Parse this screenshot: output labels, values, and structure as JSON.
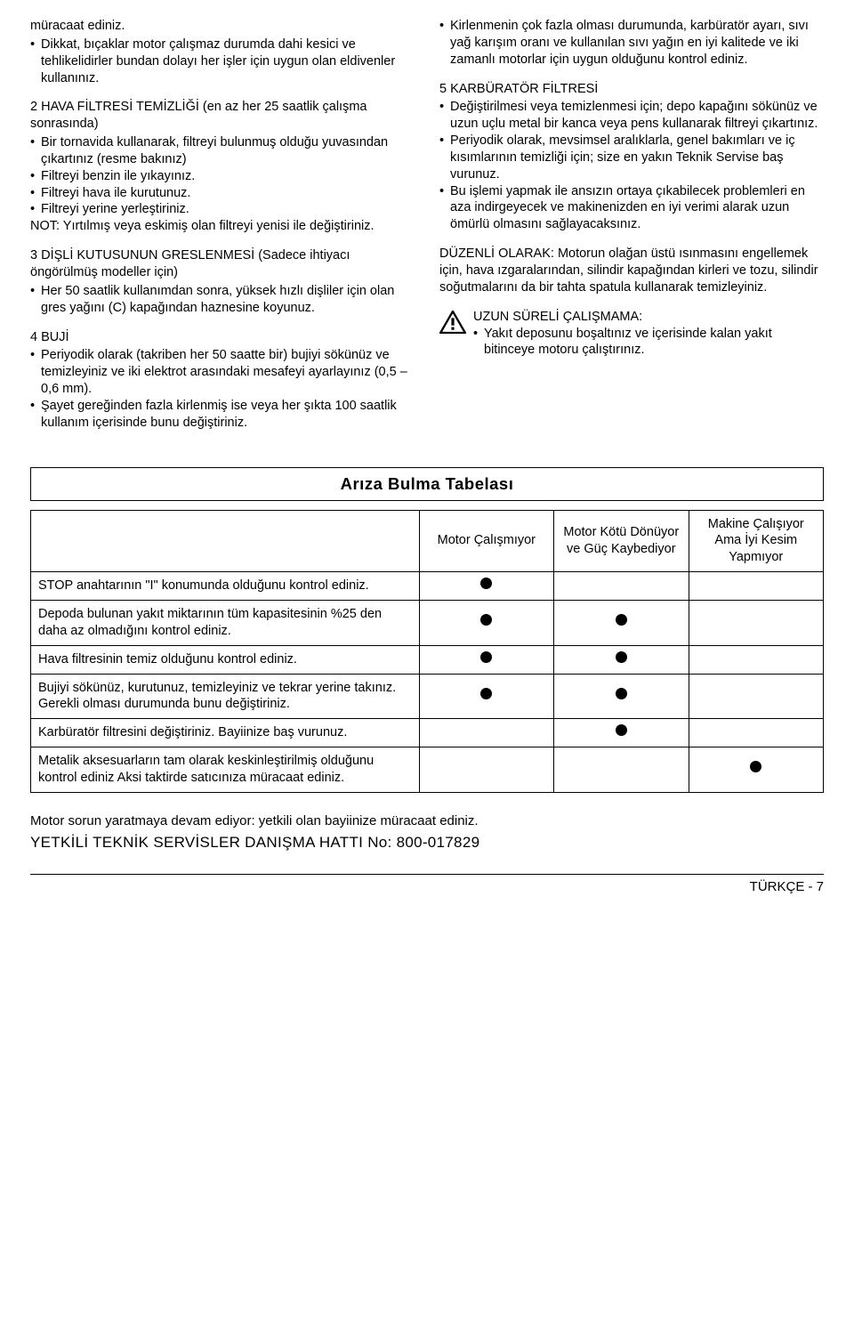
{
  "leftcol": {
    "p0": "müracaat ediniz.",
    "b0": "Dikkat, bıçaklar motor çalışmaz durumda dahi kesici ve tehlikelidirler bundan dolayı her işler için uygun olan eldivenler kullanınız.",
    "h1": "2 HAVA FİLTRESİ TEMİZLİĞİ (en az her 25 saatlik çalışma sonrasında)",
    "b1a": "Bir tornavida kullanarak, filtreyi bulunmuş olduğu yuvasından çıkartınız (resme bakınız)",
    "b1b": "Filtreyi benzin ile yıkayınız.",
    "b1c": "Filtreyi hava ile kurutunuz.",
    "b1d": "Filtreyi yerine yerleştiriniz.",
    "note1": "NOT: Yırtılmış veya eskimiş olan filtreyi yenisi ile değiştiriniz.",
    "h2": "3 DİŞLİ KUTUSUNUN GRESLENMESİ (Sadece ihtiyacı öngörülmüş modeller için)",
    "b2": "Her 50 saatlik kullanımdan sonra, yüksek hızlı dişliler için olan gres yağını (C) kapağından haznesine koyunuz.",
    "h3": "4 BUJİ",
    "b3a": "Periyodik olarak (takriben her 50 saatte bir) bujiyi sökünüz ve temizleyiniz ve iki elektrot arasındaki mesafeyi ayarlayınız (0,5 – 0,6 mm).",
    "b3b": "Şayet gereğinden fazla kirlenmiş ise veya her şıkta 100 saatlik kullanım içerisinde bunu değiştiriniz."
  },
  "rightcol": {
    "b0": "Kirlenmenin çok fazla olması durumunda, karbüratör ayarı, sıvı yağ karışım oranı ve kullanılan sıvı yağın en iyi kalitede ve iki zamanlı motorlar için uygun olduğunu kontrol ediniz.",
    "h1": "5 KARBÜRATÖR FİLTRESİ",
    "b1a": "Değiştirilmesi veya temizlenmesi için; depo kapağını sökünüz ve uzun uçlu metal bir kanca veya pens kullanarak filtreyi çıkartınız.",
    "b1b": "Periyodik olarak, mevsimsel aralıklarla, genel bakımları ve iç kısımlarının temizliği için; size en yakın Teknik Servise baş vurunuz.",
    "b1c": "Bu işlemi yapmak ile ansızın ortaya çıkabilecek problemleri en aza indirgeyecek ve makinenizden en iyi verimi alarak uzun ömürlü olmasını sağlayacaksınız.",
    "p2a": "DÜZENLİ OLARAK:",
    "p2b": " Motorun olağan üstü ısınmasını engellemek için, hava ızgaralarından, silindir kapağından kirleri ve tozu, silindir soğutmalarını da bir tahta spatula kullanarak temizleyiniz.",
    "warn_t": "UZUN SÜRELİ ÇALIŞMAMA:",
    "warn_b": "Yakıt deposunu boşaltınız ve içerisinde kalan yakıt bitinceye motoru çalıştırınız."
  },
  "table": {
    "title": "Arıza Bulma Tabelası",
    "headers": {
      "c1": "Motor Çalışmıyor",
      "c2": "Motor Kötü Dönüyor ve Güç Kaybediyor",
      "c3": "Makine Çalışıyor Ama İyi Kesim Yapmıyor"
    },
    "rows": [
      {
        "desc": "STOP anahtarının \"I\" konumunda olduğunu kontrol ediniz.",
        "c1": true,
        "c2": false,
        "c3": false
      },
      {
        "desc": "Depoda bulunan yakıt miktarının tüm kapasitesinin %25 den daha az olmadığını kontrol ediniz.",
        "c1": true,
        "c2": true,
        "c3": false
      },
      {
        "desc": "Hava filtresinin temiz olduğunu kontrol ediniz.",
        "c1": true,
        "c2": true,
        "c3": false
      },
      {
        "desc": "Bujiyi sökünüz, kurutunuz, temizleyiniz ve tekrar yerine takınız. Gerekli olması durumunda bunu değiştiriniz.",
        "c1": true,
        "c2": true,
        "c3": false
      },
      {
        "desc": "Karbüratör filtresini değiştiriniz. Bayiinize baş vurunuz.",
        "c1": false,
        "c2": true,
        "c3": false
      },
      {
        "desc": "Metalik aksesuarların tam olarak keskinleştirilmiş olduğunu kontrol ediniz Aksi taktirde satıcınıza müracaat ediniz.",
        "c1": false,
        "c2": false,
        "c3": true
      }
    ]
  },
  "footer": {
    "note": "Motor sorun yaratmaya devam ediyor: yetkili olan bayiinize müracaat ediniz.",
    "hotline": "YETKİLİ TEKNİK SERVİSLER DANIŞMA HATTI No: 800-017829",
    "page": "TÜRKÇE - 7"
  },
  "style": {
    "dot_color": "#000000",
    "border_color": "#000000",
    "bg": "#ffffff",
    "font_body_pt": 11,
    "font_title_pt": 14
  }
}
